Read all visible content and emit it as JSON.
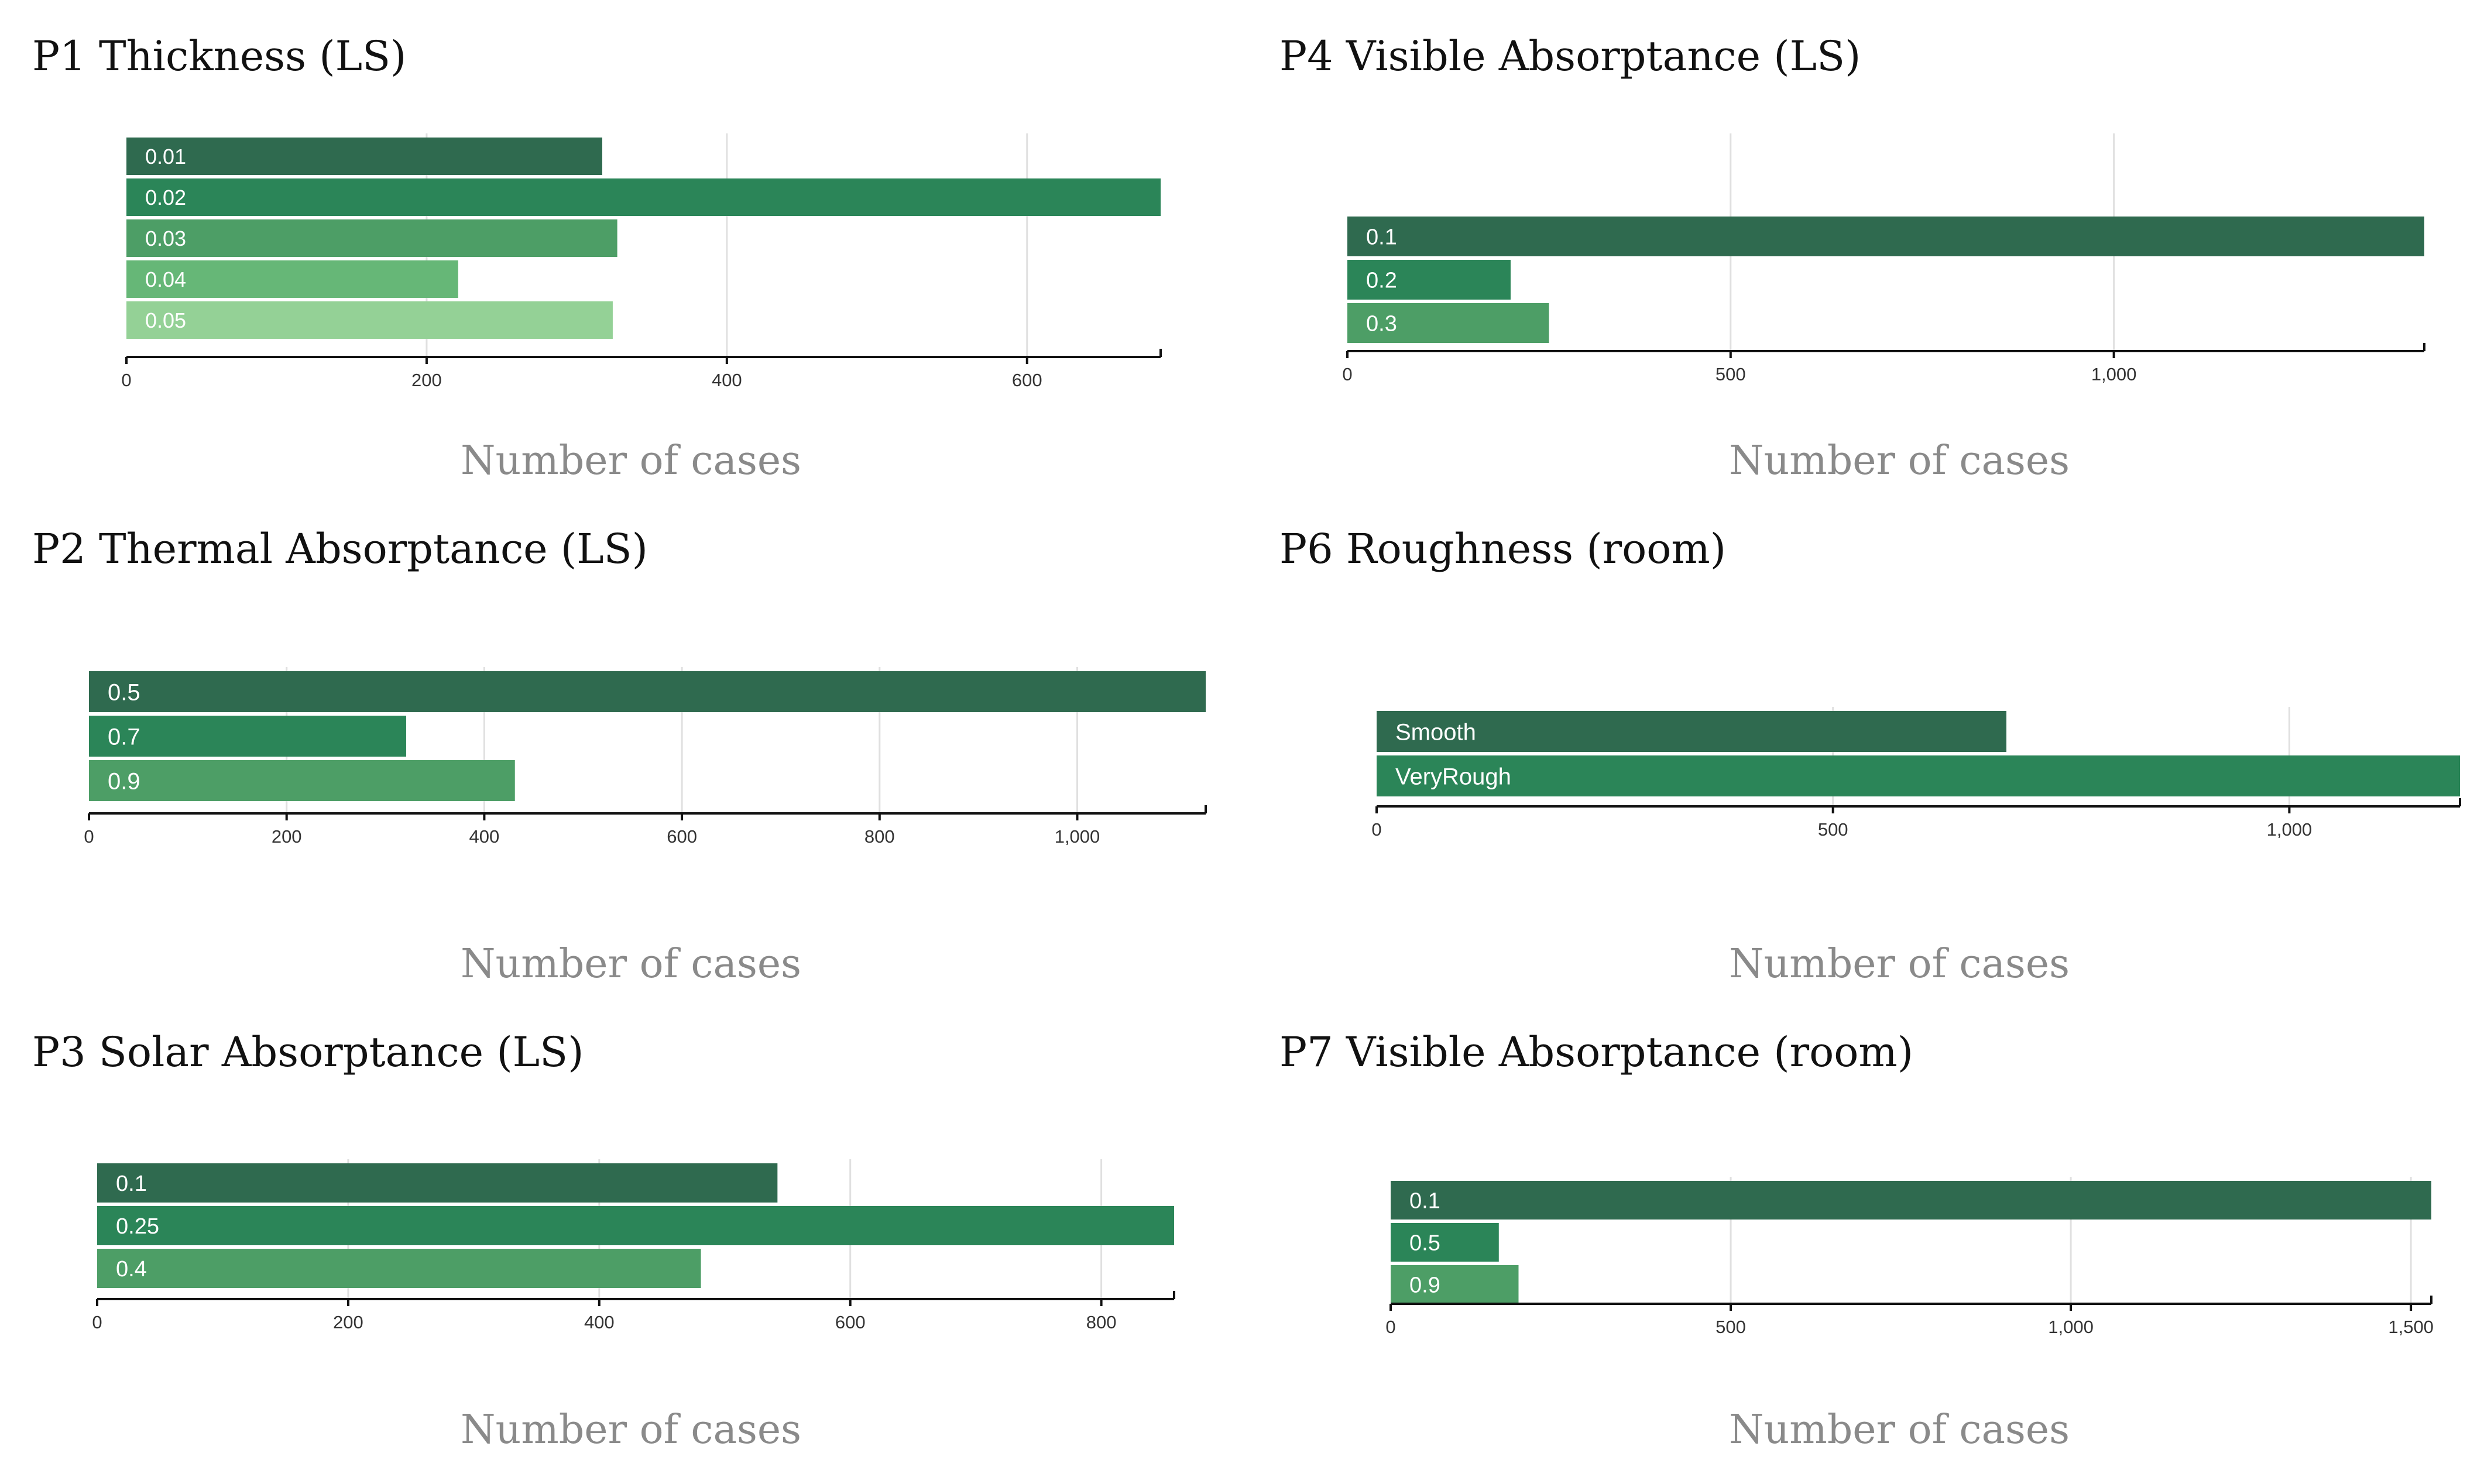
{
  "chart_data": [
    {
      "id": "p1",
      "type": "bar",
      "orientation": "horizontal",
      "title": "P1 Thickness (LS)",
      "xlabel": "Number of cases",
      "ylabel": "",
      "categories": [
        "0.01",
        "0.02",
        "0.03",
        "0.04",
        "0.05"
      ],
      "values": [
        317,
        689,
        327,
        221,
        324
      ],
      "xlim": [
        0,
        689
      ],
      "ticks": [
        0,
        200,
        400,
        600
      ],
      "tick_labels": [
        "0",
        "200",
        "400",
        "600"
      ],
      "colors": [
        "#2f6a4f",
        "#2b8558",
        "#4d9e66",
        "#66b777",
        "#94d196"
      ]
    },
    {
      "id": "p4",
      "type": "bar",
      "orientation": "horizontal",
      "title": "P4 Visible Absorptance (LS)",
      "xlabel": "Number of cases",
      "ylabel": "",
      "categories": [
        "0.1",
        "0.2",
        "0.3"
      ],
      "values": [
        1405,
        213,
        263
      ],
      "xlim": [
        0,
        1405
      ],
      "ticks": [
        0,
        500,
        1000
      ],
      "tick_labels": [
        "0",
        "500",
        "1,000"
      ],
      "colors": [
        "#2f6a4f",
        "#2b8558",
        "#4d9e66"
      ]
    },
    {
      "id": "p2",
      "type": "bar",
      "orientation": "horizontal",
      "title": "P2 Thermal Absorptance (LS)",
      "xlabel": "Number of cases",
      "ylabel": "",
      "categories": [
        "0.5",
        "0.7",
        "0.9"
      ],
      "values": [
        1130,
        321,
        431
      ],
      "xlim": [
        0,
        1130
      ],
      "ticks": [
        0,
        200,
        400,
        600,
        800,
        1000
      ],
      "tick_labels": [
        "0",
        "200",
        "400",
        "600",
        "800",
        "1,000"
      ],
      "colors": [
        "#2f6a4f",
        "#2b8558",
        "#4d9e66"
      ]
    },
    {
      "id": "p6",
      "type": "bar",
      "orientation": "horizontal",
      "title": "P6 Roughness (room)",
      "xlabel": "Number of cases",
      "ylabel": "",
      "categories": [
        "Smooth",
        "VeryRough"
      ],
      "values": [
        690,
        1187
      ],
      "xlim": [
        0,
        1187
      ],
      "ticks": [
        0,
        500,
        1000
      ],
      "tick_labels": [
        "0",
        "500",
        "1,000"
      ],
      "colors": [
        "#2f6a4f",
        "#2b8558"
      ]
    },
    {
      "id": "p3",
      "type": "bar",
      "orientation": "horizontal",
      "title": "P3 Solar Absorptance (LS)",
      "xlabel": "Number of cases",
      "ylabel": "",
      "categories": [
        "0.1",
        "0.25",
        "0.4"
      ],
      "values": [
        542,
        858,
        481
      ],
      "xlim": [
        0,
        858
      ],
      "ticks": [
        0,
        200,
        400,
        600,
        800
      ],
      "tick_labels": [
        "0",
        "200",
        "400",
        "600",
        "800"
      ],
      "colors": [
        "#2f6a4f",
        "#2b8558",
        "#4d9e66"
      ]
    },
    {
      "id": "p7",
      "type": "bar",
      "orientation": "horizontal",
      "title": "P7 Visible Absorptance (room)",
      "xlabel": "Number of cases",
      "ylabel": "",
      "categories": [
        "0.1",
        "0.5",
        "0.9"
      ],
      "values": [
        1530,
        159,
        188
      ],
      "xlim": [
        0,
        1530
      ],
      "ticks": [
        0,
        500,
        1000,
        1500
      ],
      "tick_labels": [
        "0",
        "500",
        "1,000",
        "1,500"
      ],
      "colors": [
        "#2f6a4f",
        "#2b8558",
        "#4d9e66"
      ]
    }
  ]
}
